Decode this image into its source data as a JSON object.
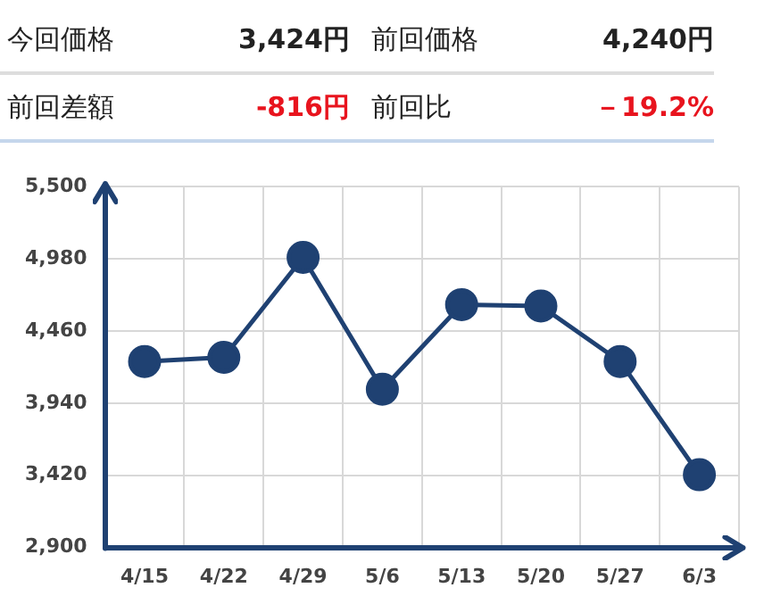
{
  "chart_data": {
    "type": "line",
    "annotations": [
      "今回価格",
      "3,424円",
      "前回価格",
      "4,240円",
      "前回差額",
      "-816円",
      "前回比",
      "－19.2%"
    ],
    "categories": [
      "4/15",
      "4/22",
      "4/29",
      "5/6",
      "5/13",
      "5/20",
      "5/27",
      "6/3"
    ],
    "series": [
      {
        "color": "#1f4172",
        "values": [
          4240,
          4270,
          4990,
          4040,
          4650,
          4640,
          4240,
          3424
        ]
      }
    ],
    "ylim": [
      2900,
      5500
    ],
    "yticks": [
      {
        "value": 2900,
        "label": "2,900"
      },
      {
        "value": 3420,
        "label": "3,420"
      },
      {
        "value": 3940,
        "label": "3,940"
      },
      {
        "value": 4460,
        "label": "4,460"
      },
      {
        "value": 4980,
        "label": "4,980"
      },
      {
        "value": 5500,
        "label": "5,500"
      }
    ],
    "grid": true,
    "marker": "circle",
    "line_style": "solid",
    "legend": false
  }
}
